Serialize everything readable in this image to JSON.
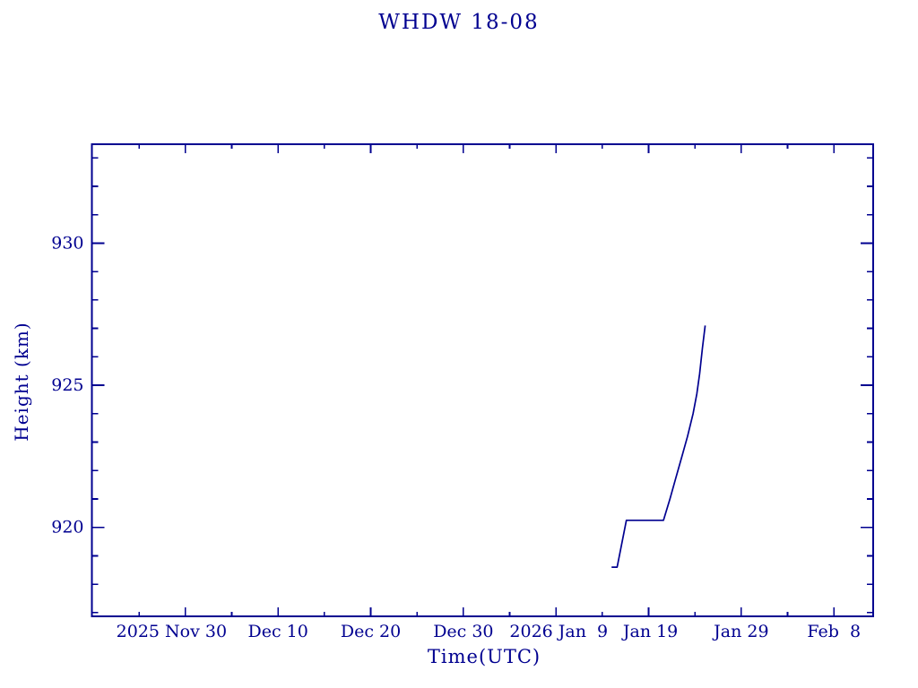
{
  "colors": {
    "ink": "#000090",
    "background": "#ffffff"
  },
  "chart_data": {
    "type": "line",
    "title": "WHDW 18-08",
    "xlabel": "Time(UTC)",
    "ylabel": "Height (km)",
    "legend": "none",
    "grid": false,
    "frame": "box with inward ticks mirrored on all four sides",
    "x_unit": "days relative to 2025 Nov 30 00:00 UTC",
    "xlim_days": [
      -10.1,
      74.24
    ],
    "ylim": [
      916.87,
      933.48
    ],
    "x_major_tick_days": [
      0,
      10,
      20,
      30,
      40,
      50,
      60,
      70
    ],
    "x_minor_tick_days": [
      -5,
      5,
      15,
      25,
      35,
      45,
      55,
      65
    ],
    "x_tick_labels": [
      {
        "text": "2025 Nov 30",
        "day": -1.5
      },
      {
        "text": "Dec 10",
        "day": 10
      },
      {
        "text": "Dec 20",
        "day": 20
      },
      {
        "text": "Dec 30",
        "day": 30
      },
      {
        "text": "2026 Jan  9",
        "day": 40.3
      },
      {
        "text": "Jan 19",
        "day": 50.2
      },
      {
        "text": "Jan 29",
        "day": 60
      },
      {
        "text": "Feb  8",
        "day": 70
      }
    ],
    "y_major_ticks": [
      920,
      925,
      930
    ],
    "y_minor_ticks": [
      917,
      918,
      919,
      921,
      922,
      923,
      924,
      926,
      927,
      928,
      929,
      931,
      932,
      933
    ],
    "series": [
      {
        "name": "WHDW 18-08 height",
        "color": "#000090",
        "points": [
          {
            "date": "2026 Jan 15.0",
            "day": 46.0,
            "height_km": 918.6
          },
          {
            "date": "2026 Jan 15.6",
            "day": 46.6,
            "height_km": 918.6
          },
          {
            "date": "2026 Jan 16.6",
            "day": 47.6,
            "height_km": 920.25
          },
          {
            "date": "2026 Jan 20.6",
            "day": 51.6,
            "height_km": 920.25
          },
          {
            "date": "2026 Jan 21.3",
            "day": 52.3,
            "height_km": 921.0
          },
          {
            "date": "2026 Jan 21.9",
            "day": 52.9,
            "height_km": 921.7
          },
          {
            "date": "2026 Jan 22.6",
            "day": 53.6,
            "height_km": 922.5
          },
          {
            "date": "2026 Jan 23.2",
            "day": 54.2,
            "height_km": 923.2
          },
          {
            "date": "2026 Jan 23.8",
            "day": 54.8,
            "height_km": 924.0
          },
          {
            "date": "2026 Jan 24.2",
            "day": 55.2,
            "height_km": 924.7
          },
          {
            "date": "2026 Jan 24.5",
            "day": 55.5,
            "height_km": 925.4
          },
          {
            "date": "2026 Jan 24.8",
            "day": 55.8,
            "height_km": 926.3
          },
          {
            "date": "2026 Jan 25.1",
            "day": 56.1,
            "height_km": 927.1
          }
        ]
      }
    ]
  }
}
